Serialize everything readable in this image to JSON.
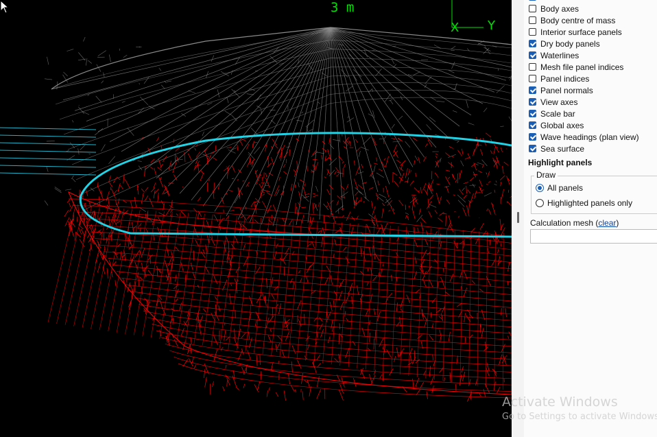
{
  "viewport": {
    "scale_bar_label": "3 m",
    "axes": {
      "x_label": "X",
      "y_label": "Y"
    },
    "colors": {
      "background": "#000000",
      "dry_panels": "#8a8a8a",
      "wet_panels": "#ff0000",
      "waterline": "#22d3e6",
      "sea_surface": "#21b3c9",
      "axes": "#00e000"
    }
  },
  "options": {
    "items": [
      {
        "label": "Body axes",
        "checked": false
      },
      {
        "label": "Body centre of mass",
        "checked": false
      },
      {
        "label": "Interior surface panels",
        "checked": false
      },
      {
        "label": "Dry body panels",
        "checked": true
      },
      {
        "label": "Waterlines",
        "checked": true
      },
      {
        "label": "Mesh file panel indices",
        "checked": false
      },
      {
        "label": "Panel indices",
        "checked": false
      },
      {
        "label": "Panel normals",
        "checked": true
      },
      {
        "label": "View axes",
        "checked": true
      },
      {
        "label": "Scale bar",
        "checked": true
      },
      {
        "label": "Global axes",
        "checked": true
      },
      {
        "label": "Wave headings (plan view)",
        "checked": true
      },
      {
        "label": "Sea surface",
        "checked": true
      }
    ]
  },
  "highlight": {
    "title": "Highlight panels",
    "draw_label": "Draw",
    "radios": [
      {
        "label": "All panels",
        "selected": true
      },
      {
        "label": "Highlighted panels only",
        "selected": false
      }
    ]
  },
  "calc_mesh": {
    "label": "Calculation mesh",
    "link": "clear",
    "value": ""
  },
  "watermark": {
    "line1": "Activate Windows",
    "line2": "Go to Settings to activate Windows."
  }
}
